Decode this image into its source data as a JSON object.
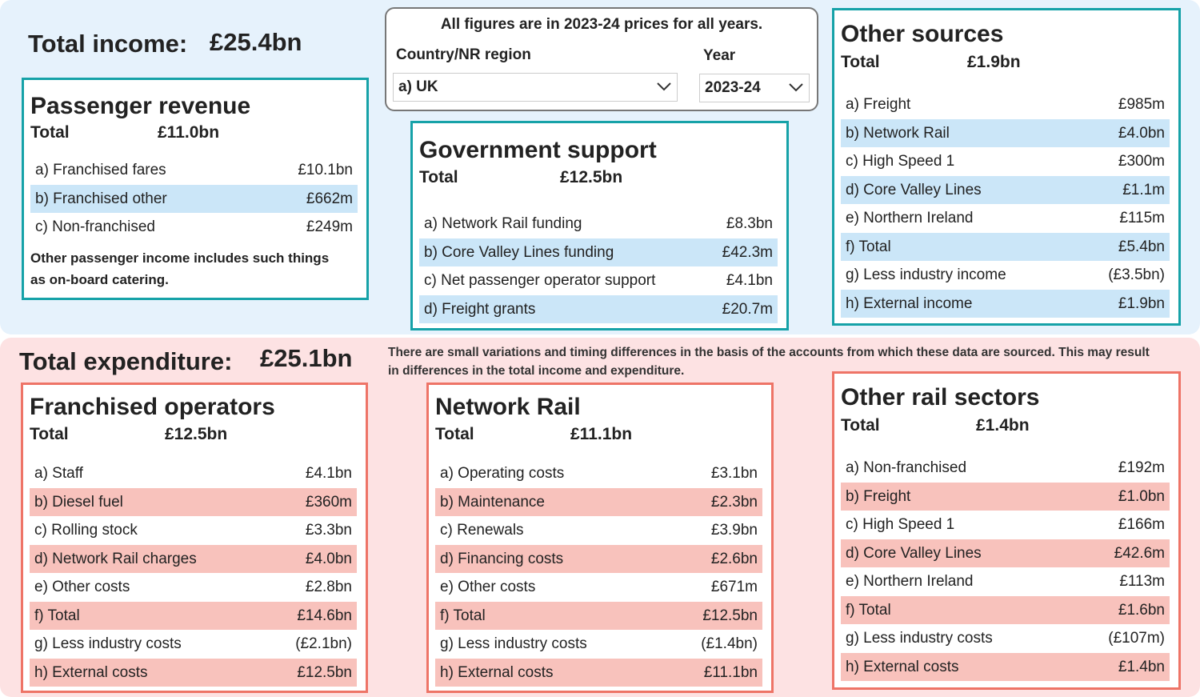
{
  "income": {
    "label": "Total income:",
    "value": "£25.4bn"
  },
  "filters": {
    "note": "All figures are in 2023-24 prices for all years.",
    "region_label": "Country/NR region",
    "region_value": "a) UK",
    "year_label": "Year",
    "year_value": "2023-24"
  },
  "expenditure": {
    "label": "Total expenditure:",
    "value": "£25.1bn"
  },
  "disclaimer": "There are small variations and timing differences in the basis of the accounts from which these data are sourced. This may result in differences in the total income and expenditure.",
  "panels": [
    {
      "title": "Passenger revenue",
      "total_label": "Total",
      "total_value": "£11.0bn",
      "rows": [
        [
          "a) Franchised fares",
          "£10.1bn"
        ],
        [
          "b) Franchised other",
          "£662m"
        ],
        [
          "c) Non-franchised",
          "£249m"
        ]
      ],
      "note": "Other passenger income includes such things as on-board catering."
    },
    {
      "title": "Government support",
      "total_label": "Total",
      "total_value": "£12.5bn",
      "rows": [
        [
          "a) Network Rail funding",
          "£8.3bn"
        ],
        [
          "b) Core Valley Lines funding",
          "£42.3m"
        ],
        [
          "c) Net passenger operator support",
          "£4.1bn"
        ],
        [
          "d) Freight grants",
          "£20.7m"
        ]
      ]
    },
    {
      "title": "Other sources",
      "total_label": "Total",
      "total_value": "£1.9bn",
      "rows": [
        [
          "a) Freight",
          "£985m"
        ],
        [
          "b) Network Rail",
          "£4.0bn"
        ],
        [
          "c) High Speed 1",
          "£300m"
        ],
        [
          "d) Core Valley Lines",
          "£1.1m"
        ],
        [
          "e) Northern Ireland",
          "£115m"
        ],
        [
          "f) Total",
          "£5.4bn"
        ],
        [
          "g) Less industry income",
          "(£3.5bn)"
        ],
        [
          "h) External income",
          "£1.9bn"
        ]
      ]
    },
    {
      "title": "Franchised operators",
      "total_label": "Total",
      "total_value": "£12.5bn",
      "rows": [
        [
          "a) Staff",
          "£4.1bn"
        ],
        [
          "b) Diesel fuel",
          "£360m"
        ],
        [
          "c) Rolling stock",
          "£3.3bn"
        ],
        [
          "d) Network Rail charges",
          "£4.0bn"
        ],
        [
          "e) Other costs",
          "£2.8bn"
        ],
        [
          "f) Total",
          "£14.6bn"
        ],
        [
          "g) Less industry costs",
          "(£2.1bn)"
        ],
        [
          "h) External costs",
          "£12.5bn"
        ]
      ]
    },
    {
      "title": "Network Rail",
      "total_label": "Total",
      "total_value": "£11.1bn",
      "rows": [
        [
          "a) Operating costs",
          "£3.1bn"
        ],
        [
          "b) Maintenance",
          "£2.3bn"
        ],
        [
          "c) Renewals",
          "£3.9bn"
        ],
        [
          "d) Financing costs",
          "£2.6bn"
        ],
        [
          "e) Other costs",
          "£671m"
        ],
        [
          "f) Total",
          "£12.5bn"
        ],
        [
          "g) Less industry costs",
          "(£1.4bn)"
        ],
        [
          "h) External costs",
          "£11.1bn"
        ]
      ]
    },
    {
      "title": "Other rail sectors",
      "total_label": "Total",
      "total_value": "£1.4bn",
      "rows": [
        [
          "a) Non-franchised",
          "£192m"
        ],
        [
          "b) Freight",
          "£1.0bn"
        ],
        [
          "c) High Speed 1",
          "£166m"
        ],
        [
          "d) Core Valley Lines",
          "£42.6m"
        ],
        [
          "e) Northern Ireland",
          "£113m"
        ],
        [
          "f) Total",
          "£1.6bn"
        ],
        [
          "g) Less industry costs",
          "(£107m)"
        ],
        [
          "h) External costs",
          "£1.4bn"
        ]
      ]
    }
  ]
}
